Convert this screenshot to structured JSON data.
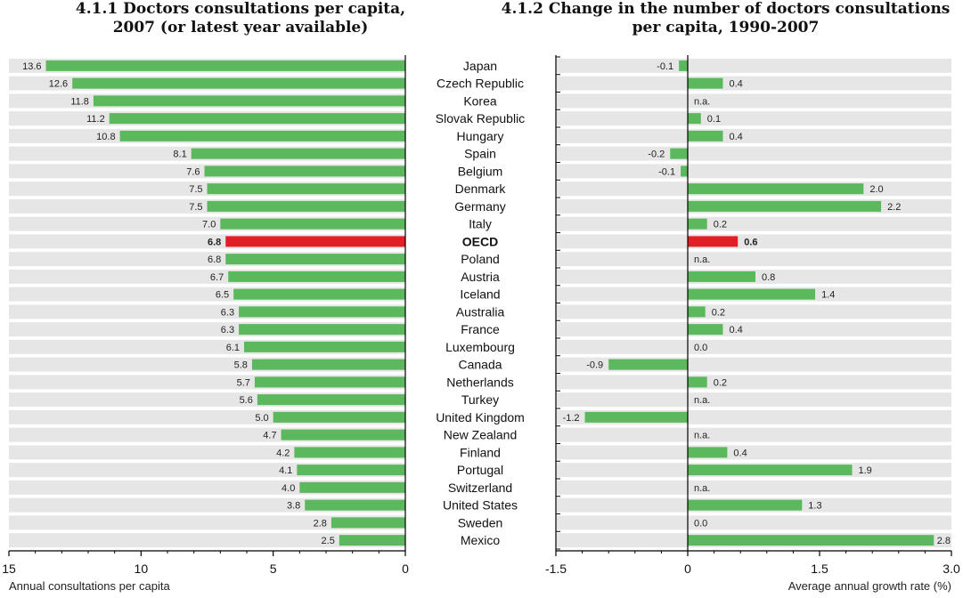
{
  "chart_data": [
    {
      "type": "bar",
      "title": "4.1.1  Doctors consultations per capita,\n2007 (or latest year available)",
      "xlabel": "Annual consultations per capita",
      "xlim": [
        15,
        0
      ],
      "ticks": [
        "15",
        "10",
        "5",
        "0"
      ],
      "tick_values": [
        15,
        10,
        5,
        0
      ],
      "categories": [
        "Japan",
        "Czech Republic",
        "Korea",
        "Slovak Republic",
        "Hungary",
        "Spain",
        "Belgium",
        "Denmark",
        "Germany",
        "Italy",
        "OECD",
        "Poland",
        "Austria",
        "Iceland",
        "Australia",
        "France",
        "Luxembourg",
        "Canada",
        "Netherlands",
        "Turkey",
        "United Kingdom",
        "New Zealand",
        "Finland",
        "Portugal",
        "Switzerland",
        "United States",
        "Sweden",
        "Mexico"
      ],
      "values": [
        13.6,
        12.6,
        11.8,
        11.2,
        10.8,
        8.1,
        7.6,
        7.5,
        7.5,
        7.0,
        6.8,
        6.8,
        6.7,
        6.5,
        6.3,
        6.3,
        6.1,
        5.8,
        5.7,
        5.6,
        5.0,
        4.7,
        4.2,
        4.1,
        4.0,
        3.8,
        2.8,
        2.5
      ],
      "labels": [
        "13.6",
        "12.6",
        "11.8",
        "11.2",
        "10.8",
        "8.1",
        "7.6",
        "7.5",
        "7.5",
        "7.0",
        "6.8",
        "6.8",
        "6.7",
        "6.5",
        "6.3",
        "6.3",
        "6.1",
        "5.8",
        "5.7",
        "5.6",
        "5.0",
        "4.7",
        "4.2",
        "4.1",
        "4.0",
        "3.8",
        "2.8",
        "2.5"
      ],
      "highlight": "OECD",
      "colors": {
        "bar": "#5cb85c",
        "highlight": "#e31e24",
        "band": "#e6e6e6"
      }
    },
    {
      "type": "bar",
      "title": "4.1.2  Change in the number of doctors consultations\nper capita, 1990-2007",
      "xlabel": "Average annual growth rate (%)",
      "xlim": [
        -1.5,
        3.0
      ],
      "ticks": [
        "-1.5",
        "0",
        "1.5",
        "3.0"
      ],
      "tick_values": [
        -1.5,
        0,
        1.5,
        3.0
      ],
      "categories": [
        "Japan",
        "Czech Republic",
        "Korea",
        "Slovak Republic",
        "Hungary",
        "Spain",
        "Belgium",
        "Denmark",
        "Germany",
        "Italy",
        "OECD",
        "Poland",
        "Austria",
        "Iceland",
        "Australia",
        "France",
        "Luxembourg",
        "Canada",
        "Netherlands",
        "Turkey",
        "United Kingdom",
        "New Zealand",
        "Finland",
        "Portugal",
        "Switzerland",
        "United States",
        "Sweden",
        "Mexico"
      ],
      "values": [
        -0.1,
        0.4,
        null,
        0.15,
        0.4,
        -0.2,
        -0.08,
        2.0,
        2.2,
        0.22,
        0.57,
        null,
        0.77,
        1.45,
        0.2,
        0.4,
        0.0,
        -0.9,
        0.22,
        null,
        -1.17,
        null,
        0.45,
        1.87,
        null,
        1.3,
        0.0,
        2.8
      ],
      "labels": [
        "-0.1",
        "0.4",
        "n.a.",
        "0.1",
        "0.4",
        "-0.2",
        "-0.1",
        "2.0",
        "2.2",
        "0.2",
        "0.6",
        "n.a.",
        "0.8",
        "1.4",
        "0.2",
        "0.4",
        "0.0",
        "-0.9",
        "0.2",
        "n.a.",
        "-1.2",
        "n.a.",
        "0.4",
        "1.9",
        "n.a.",
        "1.3",
        "0.0",
        "2.8"
      ],
      "highlight": "OECD",
      "colors": {
        "bar": "#5cb85c",
        "highlight": "#e31e24",
        "band": "#e6e6e6"
      }
    }
  ]
}
